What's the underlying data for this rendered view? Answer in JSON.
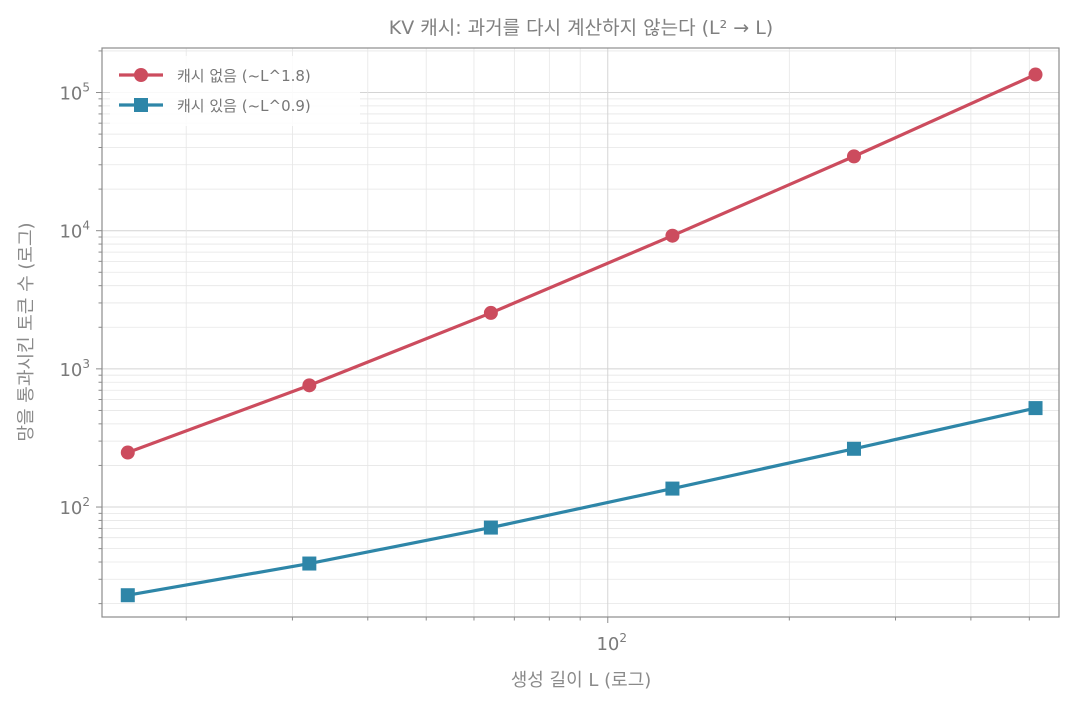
{
  "chart_data": {
    "type": "line",
    "title": "KV 캐시: 과거를 다시 계산하지 않는다 (L² → L)",
    "xlabel": "생성 길이 L (로그)",
    "ylabel": "망을 통과시킨 토큰 수 (로그)",
    "xscale": "log",
    "yscale": "log",
    "xlim": [
      14.5,
      560
    ],
    "ylim": [
      16,
      210000
    ],
    "grid": true,
    "legend_position": "top-left",
    "x": [
      16,
      32,
      64,
      128,
      256,
      512
    ],
    "series": [
      {
        "name": "캐시 없음 (~L^1.8)",
        "color": "#cc4c5e",
        "marker": "circle",
        "values": [
          248,
          760,
          2540,
          9200,
          34500,
          135000
        ]
      },
      {
        "name": "캐시 있음 (~L^0.9)",
        "color": "#2e86a8",
        "marker": "square",
        "values": [
          23,
          39,
          71,
          136,
          264,
          520
        ]
      }
    ],
    "x_ticks": [
      {
        "base": "10",
        "exp": "2",
        "value": 100
      }
    ],
    "y_ticks": [
      {
        "base": "10",
        "exp": "2",
        "value": 100
      },
      {
        "base": "10",
        "exp": "3",
        "value": 1000
      },
      {
        "base": "10",
        "exp": "4",
        "value": 10000
      },
      {
        "base": "10",
        "exp": "5",
        "value": 100000
      }
    ]
  }
}
